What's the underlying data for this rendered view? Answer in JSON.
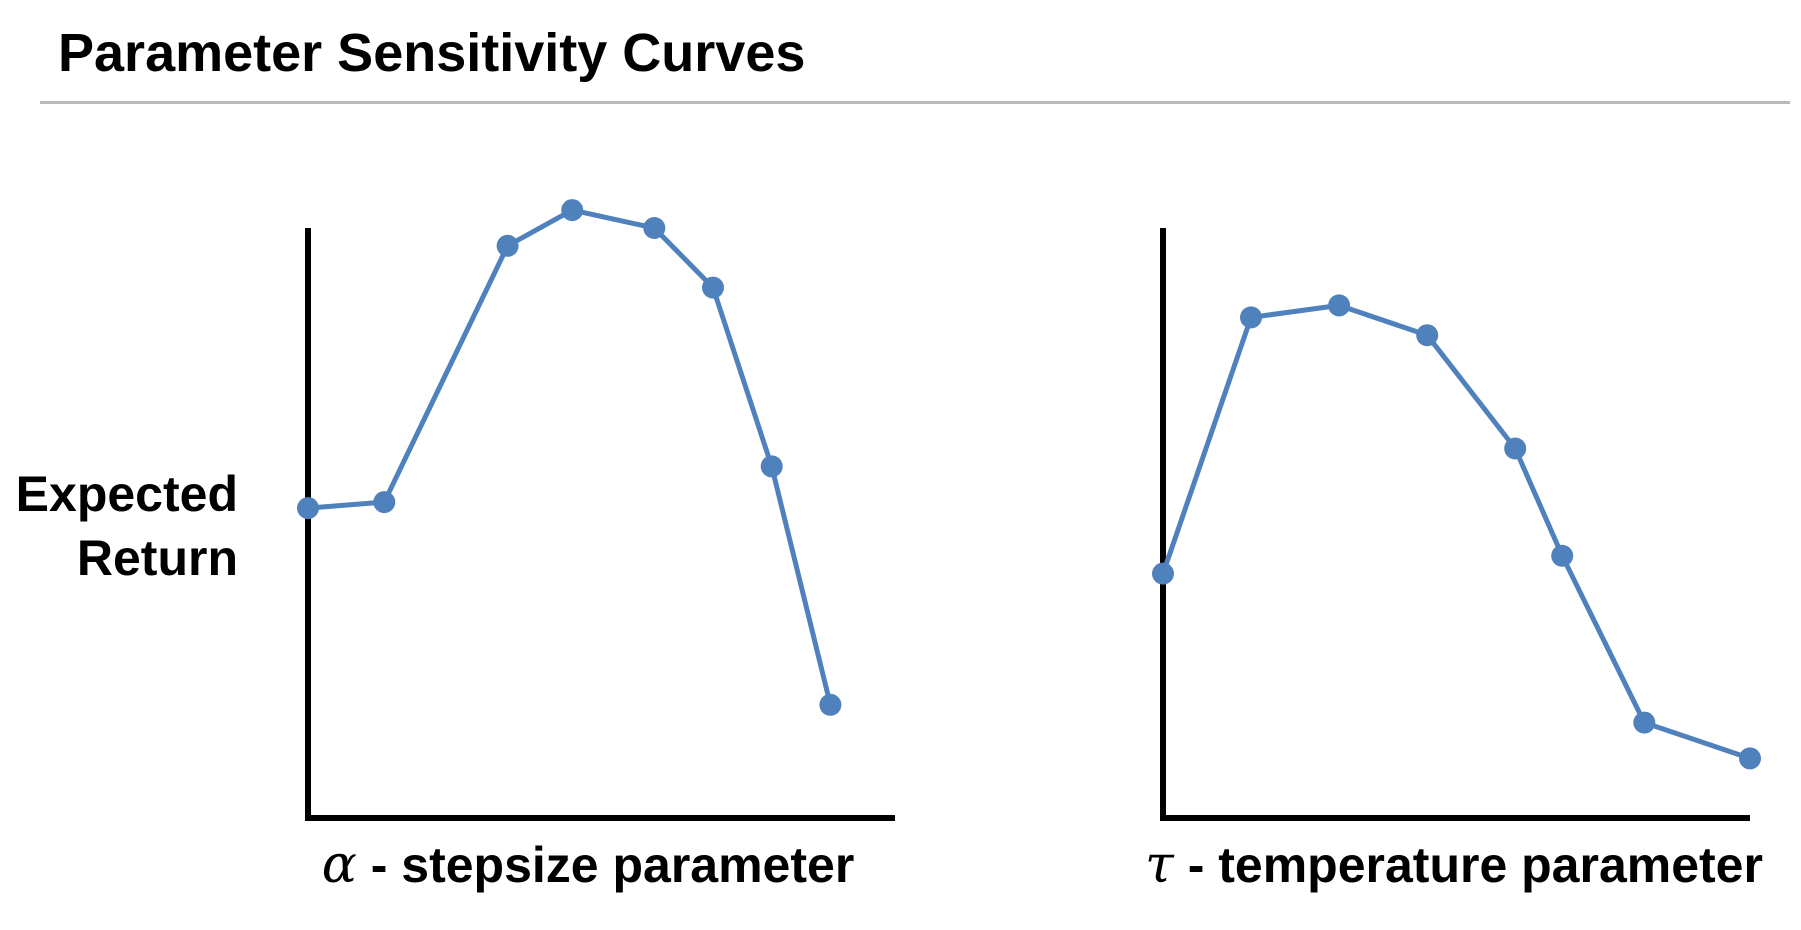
{
  "title": "Parameter Sensitivity Curves",
  "ylabel": [
    "Expected",
    "Return"
  ],
  "colors": {
    "series": "#4f81bd",
    "axis": "#000000",
    "rule": "#b9b9b9"
  },
  "chart_data": [
    {
      "type": "line",
      "xlabel_symbol": "α",
      "xlabel": " - stepsize parameter",
      "ylabel": "Expected Return",
      "xlim": [
        0,
        10
      ],
      "ylim": [
        0,
        10
      ],
      "grid": false,
      "x": [
        0,
        1.3,
        3.4,
        4.5,
        5.9,
        6.9,
        7.9,
        8.9
      ],
      "y": [
        5.2,
        5.3,
        9.6,
        10.2,
        9.9,
        8.9,
        5.9,
        1.9
      ]
    },
    {
      "type": "line",
      "xlabel_symbol": "τ",
      "xlabel": " - temperature parameter",
      "ylabel": "Expected Return",
      "xlim": [
        0,
        10
      ],
      "ylim": [
        0,
        10
      ],
      "grid": false,
      "x": [
        0,
        1.5,
        3.0,
        4.5,
        6.0,
        6.8,
        8.2,
        10.0
      ],
      "y": [
        4.1,
        8.4,
        8.6,
        8.1,
        6.2,
        4.4,
        1.6,
        1.0
      ]
    }
  ]
}
